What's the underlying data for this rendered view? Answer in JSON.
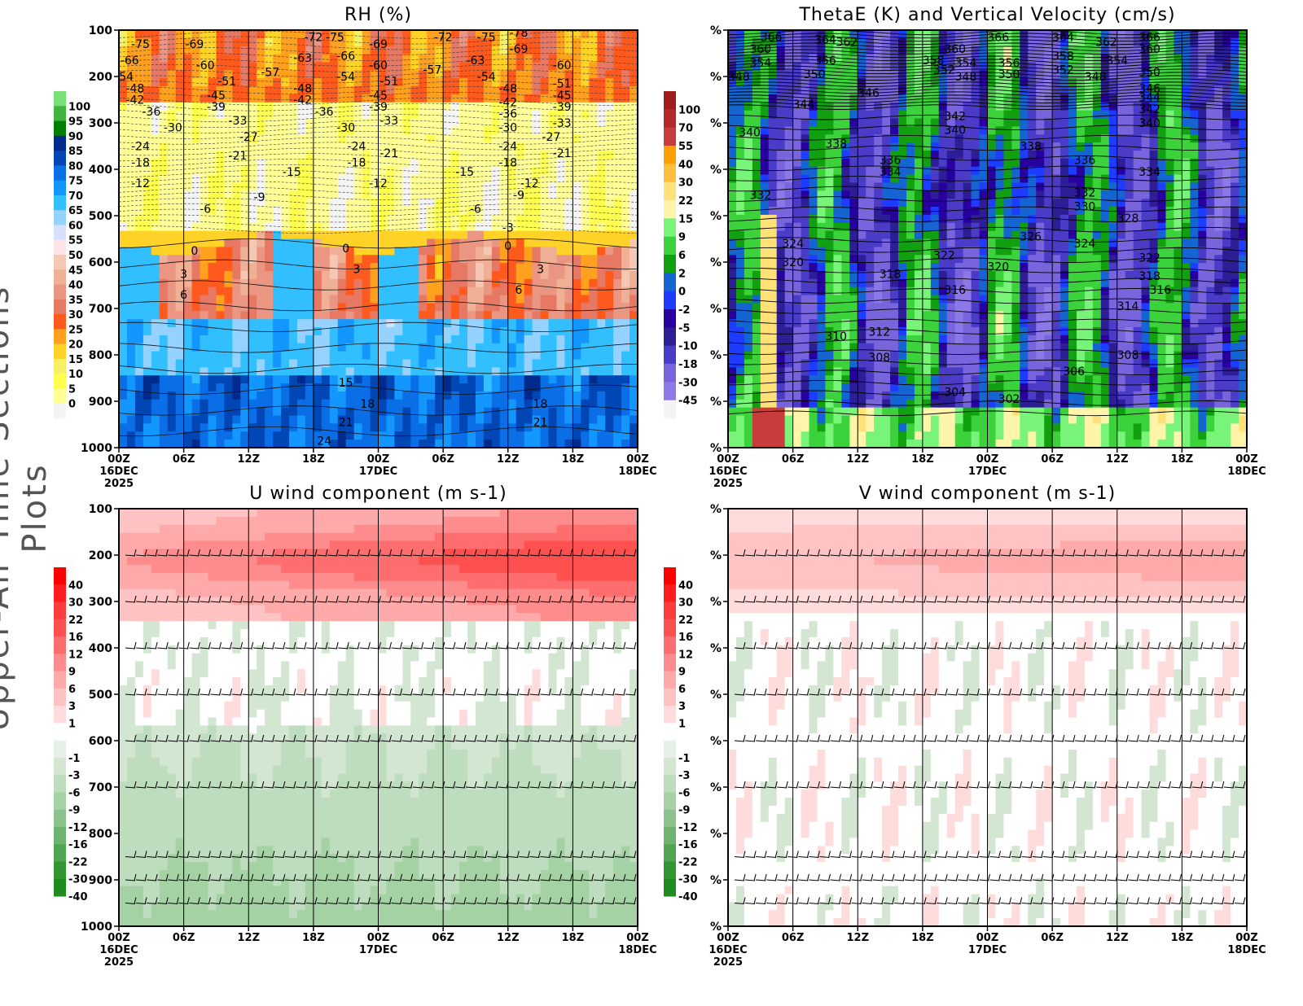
{
  "side_title": "Upper-Air Time Sections Plots",
  "chart_data": [
    {
      "type": "heatmap",
      "title": "RH (%)",
      "field": "rh",
      "y_axis": {
        "range": [
          100,
          1000
        ],
        "ticks": [
          "100",
          "200",
          "300",
          "400",
          "500",
          "600",
          "700",
          "800",
          "900",
          "1000"
        ],
        "inverted": true
      },
      "x_ticks": [
        "00Z",
        "06Z",
        "12Z",
        "18Z",
        "00Z",
        "06Z",
        "12Z",
        "18Z",
        "00Z"
      ],
      "x_dates": [
        [
          "16DEC",
          "2025"
        ],
        [
          "17DEC"
        ],
        [
          "18DEC"
        ]
      ],
      "colorbar": {
        "labels": [
          "100",
          "95",
          "90",
          "85",
          "80",
          "75",
          "70",
          "65",
          "60",
          "55",
          "50",
          "45",
          "40",
          "35",
          "30",
          "25",
          "20",
          "15",
          "10",
          "5",
          "0"
        ],
        "colors": [
          "#77e077",
          "#3fb53f",
          "#008000",
          "#002a8c",
          "#0046b4",
          "#0a6ee6",
          "#1496ff",
          "#32bfff",
          "#96d2ff",
          "#d6e0ff",
          "#ffe6e6",
          "#f5c8b4",
          "#f0b096",
          "#eb9682",
          "#e67864",
          "#ff5a1e",
          "#ffa01e",
          "#ffd228",
          "#f5f064",
          "#ffff50",
          "#ffff96",
          "#f4f4f4"
        ]
      },
      "contour_labels": [
        [
          2,
          130,
          "-75"
        ],
        [
          1,
          165,
          "-66"
        ],
        [
          7,
          130,
          "-69"
        ],
        [
          8,
          175,
          "-60"
        ],
        [
          14,
          190,
          "-57"
        ],
        [
          18,
          115,
          "-72"
        ],
        [
          17,
          160,
          "-63"
        ],
        [
          20,
          115,
          "-75"
        ],
        [
          21,
          155,
          "-66"
        ],
        [
          24,
          130,
          "-69"
        ],
        [
          24,
          175,
          "-60"
        ],
        [
          30,
          115,
          "-72"
        ],
        [
          29,
          185,
          "-57"
        ],
        [
          34,
          115,
          "-75"
        ],
        [
          33,
          165,
          "-63"
        ],
        [
          37,
          105,
          "-78"
        ],
        [
          37,
          140,
          "-69"
        ],
        [
          41,
          175,
          "-60"
        ],
        [
          0.5,
          200,
          "-54"
        ],
        [
          10,
          210,
          "-51"
        ],
        [
          21,
          200,
          "-54"
        ],
        [
          25,
          210,
          "-51"
        ],
        [
          34,
          200,
          "-54"
        ],
        [
          41,
          215,
          "-51"
        ],
        [
          1.5,
          225,
          "-48"
        ],
        [
          1.5,
          250,
          "-42"
        ],
        [
          9,
          240,
          "-45"
        ],
        [
          9,
          265,
          "-39"
        ],
        [
          17,
          225,
          "-48"
        ],
        [
          17,
          250,
          "-42"
        ],
        [
          24,
          240,
          "-45"
        ],
        [
          24,
          265,
          "-39"
        ],
        [
          36,
          225,
          "-48"
        ],
        [
          36,
          255,
          "-42"
        ],
        [
          41,
          240,
          "-45"
        ],
        [
          41,
          265,
          "-39"
        ],
        [
          3,
          275,
          "-36"
        ],
        [
          19,
          275,
          "-36"
        ],
        [
          36,
          280,
          "-36"
        ],
        [
          5,
          310,
          "-30"
        ],
        [
          11,
          295,
          "-33"
        ],
        [
          21,
          310,
          "-30"
        ],
        [
          25,
          295,
          "-33"
        ],
        [
          36,
          310,
          "-30"
        ],
        [
          41,
          300,
          "-33"
        ],
        [
          12,
          330,
          "-27"
        ],
        [
          40,
          330,
          "-27"
        ],
        [
          2,
          350,
          "-24"
        ],
        [
          11,
          370,
          "-21"
        ],
        [
          22,
          350,
          "-24"
        ],
        [
          25,
          365,
          "-21"
        ],
        [
          36,
          350,
          "-24"
        ],
        [
          41,
          365,
          "-21"
        ],
        [
          2,
          385,
          "-18"
        ],
        [
          22,
          385,
          "-18"
        ],
        [
          36,
          385,
          "-18"
        ],
        [
          16,
          405,
          "-15"
        ],
        [
          32,
          405,
          "-15"
        ],
        [
          2,
          430,
          "-12"
        ],
        [
          24,
          430,
          "-12"
        ],
        [
          38,
          430,
          "-12"
        ],
        [
          13,
          460,
          "-9"
        ],
        [
          37,
          455,
          "-9"
        ],
        [
          8,
          485,
          "-6"
        ],
        [
          33,
          485,
          "-6"
        ],
        [
          36,
          525,
          "-3"
        ],
        [
          7,
          575,
          "0"
        ],
        [
          21,
          570,
          "0"
        ],
        [
          36,
          565,
          "0"
        ],
        [
          6,
          625,
          "3"
        ],
        [
          22,
          615,
          "3"
        ],
        [
          39,
          615,
          "3"
        ],
        [
          6,
          670,
          "6"
        ],
        [
          37,
          660,
          "6"
        ],
        [
          21,
          860,
          "15"
        ],
        [
          23,
          905,
          "18"
        ],
        [
          39,
          905,
          "18"
        ],
        [
          21,
          945,
          "21"
        ],
        [
          39,
          945,
          "21"
        ],
        [
          19,
          985,
          "24"
        ]
      ]
    },
    {
      "type": "heatmap",
      "title": "ThetaE (K) and Vertical Velocity (cm/s)",
      "field": "w",
      "y_axis": {
        "tick_label": "%"
      },
      "x_ticks": [
        "00Z",
        "06Z",
        "12Z",
        "18Z",
        "00Z",
        "06Z",
        "12Z",
        "18Z",
        "00Z"
      ],
      "x_dates": [
        [
          "16DEC",
          "2025"
        ],
        [
          "17DEC"
        ],
        [
          "18DEC"
        ]
      ],
      "colorbar": {
        "labels": [
          "100",
          "70",
          "55",
          "40",
          "30",
          "22",
          "15",
          "9",
          "6",
          "2",
          "0",
          "-2",
          "-5",
          "-10",
          "-18",
          "-30",
          "-45"
        ],
        "colors": [
          "#a01e1e",
          "#b42828",
          "#c83c3c",
          "#ffa000",
          "#ffbe3c",
          "#ffe178",
          "#fff5aa",
          "#78f578",
          "#3cd23c",
          "#10a010",
          "#1464d2",
          "#1e3cff",
          "#2800a0",
          "#2d1e96",
          "#4b3cc8",
          "#7864dc",
          "#8c78e6",
          "#f4f4f4"
        ]
      },
      "contour_labels": [
        [
          4,
          115,
          "366"
        ],
        [
          9,
          120,
          "364"
        ],
        [
          11,
          125,
          "362"
        ],
        [
          3,
          140,
          "360"
        ],
        [
          3,
          170,
          "354"
        ],
        [
          9,
          165,
          "356"
        ],
        [
          8,
          195,
          "350"
        ],
        [
          1,
          200,
          "348"
        ],
        [
          19,
          165,
          "358"
        ],
        [
          20,
          185,
          "352"
        ],
        [
          21,
          140,
          "360"
        ],
        [
          22,
          170,
          "354"
        ],
        [
          22,
          200,
          "348"
        ],
        [
          26,
          170,
          "356"
        ],
        [
          26,
          195,
          "350"
        ],
        [
          25,
          115,
          "366"
        ],
        [
          31,
          115,
          "364"
        ],
        [
          35,
          125,
          "362"
        ],
        [
          39,
          115,
          "366"
        ],
        [
          39,
          140,
          "360"
        ],
        [
          31,
          155,
          "358"
        ],
        [
          31,
          185,
          "352"
        ],
        [
          36,
          165,
          "354"
        ],
        [
          34,
          200,
          "348"
        ],
        [
          39,
          190,
          "350"
        ],
        [
          13,
          235,
          "346"
        ],
        [
          7,
          260,
          "344"
        ],
        [
          39,
          225,
          "346"
        ],
        [
          39,
          245,
          "344"
        ],
        [
          21,
          285,
          "342"
        ],
        [
          39,
          270,
          "342"
        ],
        [
          21,
          315,
          "340"
        ],
        [
          2,
          320,
          "340"
        ],
        [
          39,
          300,
          "340"
        ],
        [
          10,
          345,
          "338"
        ],
        [
          28,
          350,
          "338"
        ],
        [
          15,
          380,
          "336"
        ],
        [
          33,
          380,
          "336"
        ],
        [
          15,
          405,
          "334"
        ],
        [
          39,
          405,
          "334"
        ],
        [
          3,
          455,
          "332"
        ],
        [
          33,
          450,
          "332"
        ],
        [
          33,
          480,
          "330"
        ],
        [
          37,
          505,
          "328"
        ],
        [
          28,
          545,
          "326"
        ],
        [
          6,
          560,
          "324"
        ],
        [
          33,
          560,
          "324"
        ],
        [
          20,
          585,
          "322"
        ],
        [
          39,
          590,
          "322"
        ],
        [
          6,
          600,
          "320"
        ],
        [
          25,
          610,
          "320"
        ],
        [
          15,
          625,
          "318"
        ],
        [
          39,
          630,
          "318"
        ],
        [
          21,
          660,
          "316"
        ],
        [
          40,
          660,
          "316"
        ],
        [
          37,
          695,
          "314"
        ],
        [
          14,
          750,
          "312"
        ],
        [
          10,
          760,
          "310"
        ],
        [
          14,
          805,
          "308"
        ],
        [
          37,
          800,
          "308"
        ],
        [
          32,
          835,
          "306"
        ],
        [
          21,
          880,
          "304"
        ],
        [
          26,
          895,
          "302"
        ]
      ]
    },
    {
      "type": "heatmap",
      "title": "U wind component (m s-1)",
      "field": "u",
      "y_axis": {
        "range": [
          100,
          1000
        ],
        "ticks": [
          "100",
          "200",
          "300",
          "400",
          "500",
          "600",
          "700",
          "800",
          "900",
          "1000"
        ],
        "inverted": true
      },
      "x_ticks": [
        "00Z",
        "06Z",
        "12Z",
        "18Z",
        "00Z",
        "06Z",
        "12Z",
        "18Z",
        "00Z"
      ],
      "x_dates": [
        [
          "16DEC",
          "2025"
        ],
        [
          "17DEC"
        ],
        [
          "18DEC"
        ]
      ],
      "colorbar": {
        "labels": [
          "40",
          "30",
          "22",
          "16",
          "12",
          "9",
          "6",
          "3",
          "1",
          "-1",
          "-3",
          "-6",
          "-9",
          "-12",
          "-16",
          "-22",
          "-30",
          "-40"
        ],
        "colors": [
          "#ff0000",
          "#ff1e1e",
          "#ff3c3c",
          "#ff5050",
          "#ff6e6e",
          "#ff8c8c",
          "#ffaaaa",
          "#ffc3c3",
          "#ffdcdc",
          "#ffffff",
          "#e6f0e6",
          "#d2e6d2",
          "#bedcbe",
          "#a5d2a5",
          "#8cc38c",
          "#6eb46e",
          "#50a550",
          "#329632",
          "#1e8c1e"
        ]
      },
      "barb_levels": [
        200,
        300,
        400,
        500,
        600,
        700,
        850,
        900,
        950
      ]
    },
    {
      "type": "heatmap",
      "title": "V wind component (m s-1)",
      "field": "v",
      "y_axis": {
        "tick_label": "%"
      },
      "x_ticks": [
        "00Z",
        "06Z",
        "12Z",
        "18Z",
        "00Z",
        "06Z",
        "12Z",
        "18Z",
        "00Z"
      ],
      "x_dates": [
        [
          "16DEC",
          "2025"
        ],
        [
          "17DEC"
        ],
        [
          "18DEC"
        ]
      ],
      "colorbar": {
        "labels": [
          "40",
          "30",
          "22",
          "16",
          "12",
          "9",
          "6",
          "3",
          "1",
          "-1",
          "-3",
          "-6",
          "-9",
          "-12",
          "-16",
          "-22",
          "-30",
          "-40"
        ],
        "colors": [
          "#ff0000",
          "#ff1e1e",
          "#ff3c3c",
          "#ff5050",
          "#ff6e6e",
          "#ff8c8c",
          "#ffaaaa",
          "#ffc3c3",
          "#ffdcdc",
          "#ffffff",
          "#e6f0e6",
          "#d2e6d2",
          "#bedcbe",
          "#a5d2a5",
          "#8cc38c",
          "#6eb46e",
          "#50a550",
          "#329632",
          "#1e8c1e"
        ]
      },
      "barb_levels": [
        200,
        300,
        400,
        500,
        600,
        700,
        850,
        900,
        950
      ]
    }
  ]
}
